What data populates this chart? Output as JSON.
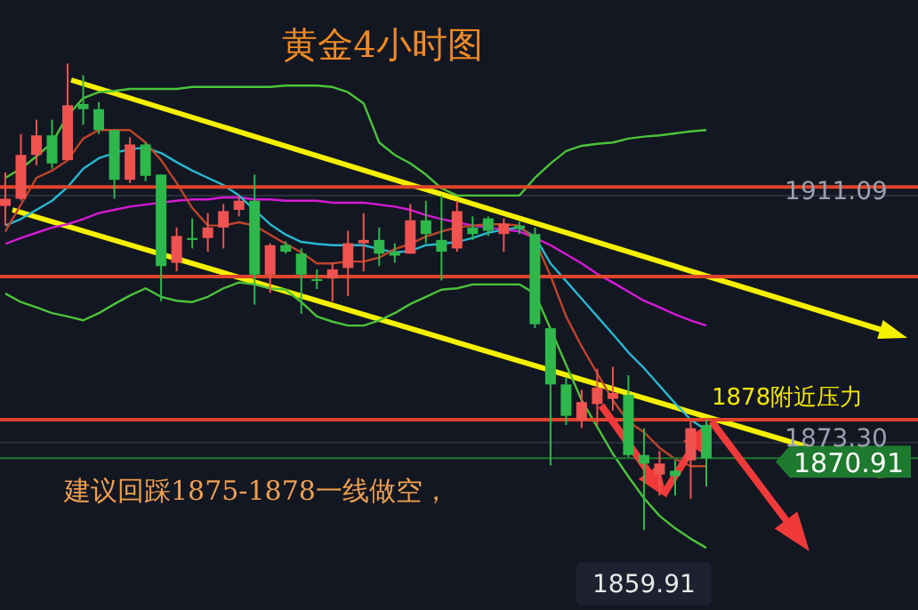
{
  "chart_data": {
    "type": "candlestick",
    "title": "黄金4小时图",
    "categories": [
      null,
      null,
      null,
      null,
      null,
      null,
      null,
      null,
      null,
      null,
      null,
      null,
      null,
      null,
      null,
      null,
      null,
      null,
      null,
      null,
      null,
      null,
      null,
      null,
      null,
      null,
      null,
      null,
      null,
      null,
      null,
      null,
      null,
      null,
      null,
      null,
      null,
      null,
      null,
      null,
      null,
      null,
      null,
      null,
      null,
      null
    ],
    "ohlc": [
      [
        1909.5,
        1914.6,
        1906.5,
        1910.6
      ],
      [
        1910.6,
        1920.5,
        1910.3,
        1917.3
      ],
      [
        1917.3,
        1922.7,
        1915.7,
        1920.3
      ],
      [
        1920.3,
        1922.7,
        1915.2,
        1916.0
      ],
      [
        1916.5,
        1931.3,
        1916.5,
        1924.9
      ],
      [
        1925.1,
        1929.5,
        1921.9,
        1924.3
      ],
      [
        1924.3,
        1925.4,
        1920.5,
        1921.1
      ],
      [
        1921.1,
        1921.1,
        1910.6,
        1913.5
      ],
      [
        1913.5,
        1920.0,
        1913.0,
        1918.9
      ],
      [
        1918.9,
        1919.2,
        1913.3,
        1914.1
      ],
      [
        1914.3,
        1914.3,
        1894.9,
        1900.3
      ],
      [
        1900.8,
        1906.2,
        1899.5,
        1904.9
      ],
      [
        1904.6,
        1907.6,
        1903.0,
        1904.3
      ],
      [
        1904.6,
        1908.4,
        1902.5,
        1906.2
      ],
      [
        1906.2,
        1909.8,
        1903.0,
        1908.7
      ],
      [
        1908.9,
        1911.1,
        1907.9,
        1910.3
      ],
      [
        1910.3,
        1914.3,
        1894.4,
        1899.0
      ],
      [
        1899.0,
        1903.8,
        1896.2,
        1903.5
      ],
      [
        1903.5,
        1904.1,
        1902.2,
        1902.5
      ],
      [
        1902.2,
        1903.0,
        1893.0,
        1899.0
      ],
      [
        1898.3,
        1899.8,
        1896.8,
        1898.1
      ],
      [
        1898.4,
        1900.8,
        1894.9,
        1899.8
      ],
      [
        1900.0,
        1905.7,
        1895.7,
        1903.8
      ],
      [
        1903.8,
        1908.4,
        1899.5,
        1904.3
      ],
      [
        1904.3,
        1906.2,
        1900.3,
        1902.2
      ],
      [
        1902.5,
        1903.8,
        1900.8,
        1901.9
      ],
      [
        1902.2,
        1909.8,
        1902.2,
        1907.3
      ],
      [
        1907.3,
        1910.3,
        1903.8,
        1905.2
      ],
      [
        1904.3,
        1911.1,
        1898.1,
        1902.5
      ],
      [
        1903.0,
        1910.3,
        1902.5,
        1908.7
      ],
      [
        1906.2,
        1907.9,
        1904.3,
        1905.2
      ],
      [
        1907.6,
        1907.9,
        1904.9,
        1905.7
      ],
      [
        1905.2,
        1907.6,
        1902.5,
        1906.8
      ],
      [
        1906.5,
        1907.1,
        1905.2,
        1906.0
      ],
      [
        1905.2,
        1906.2,
        1890.8,
        1891.4
      ],
      [
        1890.8,
        1890.8,
        1869.8,
        1882.2
      ],
      [
        1882.2,
        1883.3,
        1876.0,
        1877.4
      ],
      [
        1876.8,
        1881.4,
        1875.5,
        1879.5
      ],
      [
        1879.2,
        1884.6,
        1876.0,
        1881.7
      ],
      [
        1880.0,
        1884.9,
        1878.2,
        1880.9
      ],
      [
        1880.6,
        1883.6,
        1871.1,
        1871.4
      ],
      [
        1871.4,
        1875.5,
        1859.91,
        1870.1
      ],
      [
        1868.4,
        1872.0,
        1865.2,
        1870.1
      ],
      [
        1869.0,
        1870.6,
        1865.2,
        1868.2
      ],
      [
        1870.6,
        1876.8,
        1864.7,
        1875.5
      ],
      [
        1876.0,
        1876.8,
        1866.6,
        1870.91
      ]
    ],
    "colors": [
      "#ef5350",
      "#ef5350",
      "#ef5350",
      "#2eb84b",
      "#ef5350",
      "#2eb84b",
      "#2eb84b",
      "#2eb84b",
      "#ef5350",
      "#2eb84b",
      "#2eb84b",
      "#ef5350",
      "#2eb84b",
      "#ef5350",
      "#ef5350",
      "#ef5350",
      "#2eb84b",
      "#ef5350",
      "#2eb84b",
      "#2eb84b",
      "#2eb84b",
      "#ef5350",
      "#ef5350",
      "#ef5350",
      "#2eb84b",
      "#2eb84b",
      "#ef5350",
      "#2eb84b",
      "#2eb84b",
      "#ef5350",
      "#2eb84b",
      "#2eb84b",
      "#ef5350",
      "#2eb84b",
      "#2eb84b",
      "#2eb84b",
      "#2eb84b",
      "#ef5350",
      "#ef5350",
      "#ef5350",
      "#2eb84b",
      "#2eb84b",
      "#ef5350",
      "#2eb84b",
      "#ef5350",
      "#2eb84b"
    ],
    "series": [
      {
        "type": "line",
        "color": "#4cc43a",
        "values": [
          1913.8,
          1915.2,
          1917.1,
          1919.2,
          1923.3,
          1926.0,
          1926.9,
          1927.1,
          1927.4,
          1927.4,
          1927.4,
          1927.4,
          1927.7,
          1927.7,
          1927.7,
          1927.7,
          1927.7,
          1927.7,
          1927.9,
          1927.9,
          1927.9,
          1927.7,
          1926.9,
          1925.2,
          1919.2,
          1917.3,
          1916.0,
          1914.3,
          1912.2,
          1911.1,
          1911.1,
          1911.1,
          1911.1,
          1911.1,
          1913.8,
          1916.0,
          1917.9,
          1918.7,
          1919.0,
          1919.2,
          1919.8,
          1920.1,
          1920.3,
          1920.6,
          1920.9,
          1921.1
        ]
      },
      {
        "type": "line",
        "color": "#4cc43a",
        "values": [
          1896.1,
          1894.8,
          1894.0,
          1893.1,
          1892.6,
          1892.0,
          1893.1,
          1894.5,
          1895.8,
          1896.9,
          1895.6,
          1895.0,
          1894.8,
          1895.6,
          1896.9,
          1897.8,
          1897.5,
          1896.9,
          1896.7,
          1894.8,
          1892.6,
          1891.8,
          1891.2,
          1891.2,
          1892.0,
          1893.1,
          1894.5,
          1895.6,
          1896.7,
          1896.9,
          1897.5,
          1897.5,
          1897.5,
          1897.5,
          1896.1,
          1890.7,
          1885.2,
          1879.8,
          1875.7,
          1871.6,
          1868.1,
          1864.8,
          1862.1,
          1860.2,
          1858.6,
          1857.2
        ]
      },
      {
        "type": "line",
        "color": "#d61ad6",
        "values": [
          1903.7,
          1904.6,
          1905.4,
          1906.2,
          1906.7,
          1907.5,
          1908.4,
          1908.9,
          1909.4,
          1909.7,
          1910.0,
          1910.3,
          1910.5,
          1910.5,
          1910.8,
          1910.8,
          1910.5,
          1910.5,
          1910.3,
          1910.3,
          1910.3,
          1910.0,
          1910.0,
          1910.0,
          1909.7,
          1909.4,
          1908.9,
          1908.1,
          1907.5,
          1907.0,
          1906.5,
          1906.2,
          1905.9,
          1905.6,
          1904.6,
          1903.5,
          1902.1,
          1900.7,
          1899.1,
          1897.8,
          1896.4,
          1895.0,
          1894.0,
          1892.9,
          1892.0,
          1891.2
        ]
      },
      {
        "type": "line",
        "color": "#27b8d0",
        "values": [
          1906.5,
          1907.5,
          1908.9,
          1910.3,
          1912.4,
          1915.2,
          1916.8,
          1917.6,
          1918.2,
          1918.4,
          1917.6,
          1916.2,
          1914.9,
          1913.8,
          1912.7,
          1911.1,
          1908.9,
          1906.7,
          1905.1,
          1904.0,
          1903.7,
          1903.5,
          1903.5,
          1903.5,
          1902.9,
          1902.4,
          1902.6,
          1903.5,
          1903.7,
          1904.0,
          1904.6,
          1905.4,
          1905.9,
          1906.2,
          1904.8,
          1900.7,
          1898.0,
          1895.3,
          1892.6,
          1889.9,
          1887.1,
          1884.7,
          1882.0,
          1879.3,
          1876.8,
          1875.2
        ]
      },
      {
        "type": "line",
        "color": "#c0442a",
        "values": [
          1905.6,
          1909.7,
          1913.8,
          1914.9,
          1916.5,
          1919.8,
          1921.1,
          1921.1,
          1921.1,
          1919.2,
          1916.5,
          1913.0,
          1909.2,
          1906.5,
          1906.5,
          1907.0,
          1906.5,
          1905.1,
          1903.7,
          1902.4,
          1900.7,
          1900.7,
          1901.0,
          1901.0,
          1901.6,
          1902.9,
          1903.7,
          1904.8,
          1905.6,
          1906.2,
          1906.5,
          1906.7,
          1906.7,
          1906.5,
          1904.3,
          1898.8,
          1892.6,
          1888.0,
          1883.9,
          1879.8,
          1876.5,
          1874.9,
          1872.5,
          1870.8,
          1869.7,
          1869.7
        ]
      }
    ],
    "ylim": [
      1847.7,
      1941.0
    ],
    "yticks": [
      1911.09,
      {
        "value": 1873.3,
        "label": "1873.30"
      }
    ],
    "grid": "y",
    "tick_labels": "y",
    "ref_lines": [
      {
        "axis": "y",
        "value": 1912.4,
        "color": "#e0452b"
      },
      {
        "axis": "y",
        "value": 1898.7,
        "color": "#e0452b"
      },
      {
        "axis": "y",
        "value": 1876.8,
        "color": "#e0452b"
      },
      {
        "axis": "y",
        "value": 1870.91,
        "label": "1870.91",
        "color": "#1e7a2e"
      }
    ],
    "annotations": [
      "建议回踩1875-1878一线做空，",
      {
        "text": "1878附近压力",
        "y": 1878
      },
      {
        "text": "1859.91",
        "y": 1859.91
      }
    ]
  }
}
